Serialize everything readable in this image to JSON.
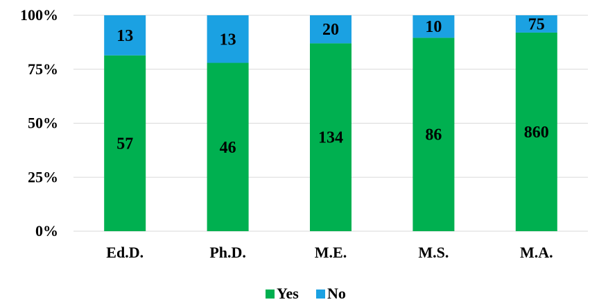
{
  "chart_data": {
    "type": "bar",
    "stacked": "percent",
    "categories": [
      "Ed.D.",
      "Ph.D.",
      "M.E.",
      "M.S.",
      "M.A."
    ],
    "series": [
      {
        "name": "Yes",
        "color": "#00b050",
        "values": [
          57,
          46,
          134,
          86,
          860
        ]
      },
      {
        "name": "No",
        "color": "#1ba1e2",
        "values": [
          13,
          13,
          20,
          10,
          75
        ]
      }
    ],
    "yticks": [
      "0%",
      "25%",
      "50%",
      "75%",
      "100%"
    ],
    "ylim": [
      0,
      100
    ],
    "grid": true,
    "legend": "bottom",
    "title": "",
    "xlabel": "",
    "ylabel": ""
  }
}
